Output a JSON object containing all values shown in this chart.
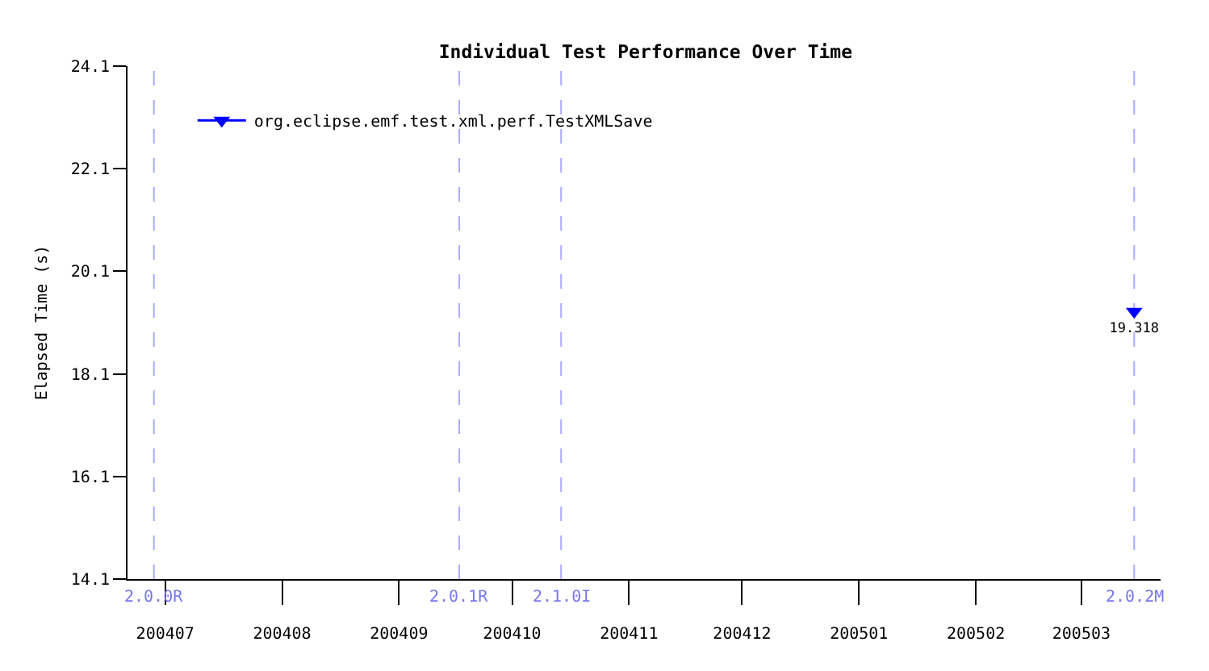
{
  "chart_data": {
    "type": "line",
    "title": "Individual Test Performance Over Time",
    "ylabel": "Elapsed Time (s)",
    "x": [
      "2005-03-15"
    ],
    "series": [
      {
        "name": "org.eclipse.emf.test.xml.perf.TestXMLSave",
        "color": "#0000ff",
        "values": [
          19.318
        ]
      }
    ],
    "xlim": [
      "2004-06-21",
      "2005-03-22"
    ],
    "xticks": [
      {
        "value": "2004-07-01",
        "label": "200407"
      },
      {
        "value": "2004-08-01",
        "label": "200408"
      },
      {
        "value": "2004-09-01",
        "label": "200409"
      },
      {
        "value": "2004-10-01",
        "label": "200410"
      },
      {
        "value": "2004-11-01",
        "label": "200411"
      },
      {
        "value": "2004-12-01",
        "label": "200412"
      },
      {
        "value": "2005-01-01",
        "label": "200501"
      },
      {
        "value": "2005-02-01",
        "label": "200502"
      },
      {
        "value": "2005-03-01",
        "label": "200503"
      }
    ],
    "ylim": [
      14.1,
      24.1
    ],
    "yticks": [
      14.1,
      16.1,
      18.1,
      20.1,
      22.1,
      24.1
    ],
    "ref_lines": [
      {
        "axis": "x",
        "value": "2004-06-28",
        "label": "2.0.0R",
        "color": "#aaaaff",
        "line_style": "dashed"
      },
      {
        "axis": "x",
        "value": "2004-09-17",
        "label": "2.0.1R",
        "color": "#aaaaff",
        "line_style": "dashed"
      },
      {
        "axis": "x",
        "value": "2004-10-14",
        "label": "2.1.0I",
        "color": "#aaaaff",
        "line_style": "dashed"
      },
      {
        "axis": "x",
        "value": "2005-03-15",
        "label": "2.0.2M",
        "color": "#aaaaff",
        "line_style": "dashed"
      }
    ],
    "legend": "top left",
    "marker": "triangle",
    "line_style": "solid",
    "data_labels": true
  }
}
